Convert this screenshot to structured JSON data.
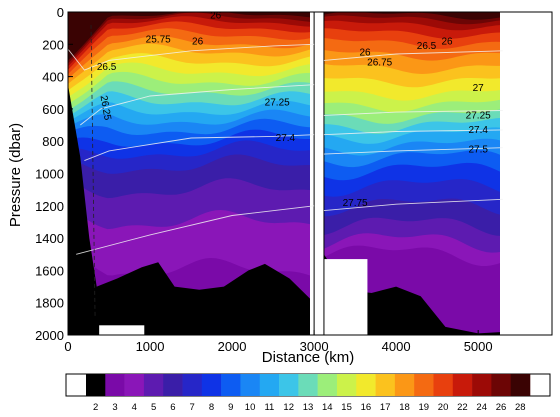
{
  "chart_data": {
    "type": "heatmap",
    "title": "",
    "xlabel": "Distance (km)",
    "ylabel": "Pressure (dbar)",
    "x_ticks": [
      0,
      1000,
      2000,
      3000,
      4000,
      5000
    ],
    "y_ticks": [
      0,
      200,
      400,
      600,
      800,
      1000,
      1200,
      1400,
      1600,
      1800,
      2000
    ],
    "xlim": [
      0,
      5900
    ],
    "ylim": [
      2000,
      0
    ],
    "y_reversed": true,
    "gap_between_sections_km": [
      3000,
      3120
    ],
    "colorbar": {
      "orientation": "horizontal",
      "position": "bottom",
      "tick_labels": [
        "2",
        "3",
        "4",
        "5",
        "6",
        "7",
        "8",
        "9",
        "10",
        "11",
        "12",
        "13",
        "14",
        "15",
        "16",
        "17",
        "18",
        "19",
        "20",
        "22",
        "24",
        "26",
        "28"
      ],
      "colors": [
        "#000000",
        "#7a0aa8",
        "#8a16b8",
        "#5d1bb0",
        "#3a1ea8",
        "#2626c8",
        "#0f33e6",
        "#0d5cf2",
        "#1a86f5",
        "#24a8f2",
        "#3cc5e8",
        "#6bdcb8",
        "#9cee7a",
        "#ccf24a",
        "#f2e92c",
        "#fbc21e",
        "#fb9716",
        "#f46a12",
        "#e8400e",
        "#c81a0a",
        "#9c0a06",
        "#6c0505",
        "#3a0303"
      ]
    },
    "isopycnal_labels": [
      "26",
      "25.75",
      "26",
      "26.5",
      "26.75",
      "27",
      "27.25",
      "27.4",
      "27.5",
      "27.75"
    ],
    "density_contours": [
      {
        "level": "26.5",
        "points": [
          [
            0,
            230
          ],
          [
            200,
            360
          ],
          [
            500,
            300
          ],
          [
            1500,
            240
          ],
          [
            2500,
            210
          ],
          [
            3000,
            200
          ]
        ]
      },
      {
        "level": "27",
        "points": [
          [
            150,
            700
          ],
          [
            400,
            600
          ],
          [
            1000,
            520
          ],
          [
            2000,
            480
          ],
          [
            3000,
            450
          ]
        ]
      },
      {
        "level": "27",
        "points": [
          [
            3120,
            300
          ],
          [
            4000,
            260
          ],
          [
            5300,
            240
          ]
        ]
      },
      {
        "level": "27.25",
        "points": [
          [
            200,
            920
          ],
          [
            500,
            860
          ],
          [
            1500,
            780
          ],
          [
            2500,
            770
          ],
          [
            3000,
            760
          ]
        ]
      },
      {
        "level": "27.25",
        "points": [
          [
            3120,
            640
          ],
          [
            4000,
            620
          ],
          [
            5300,
            610
          ]
        ]
      },
      {
        "level": "27.4",
        "points": [
          [
            3120,
            760
          ],
          [
            4000,
            740
          ],
          [
            5300,
            730
          ]
        ]
      },
      {
        "level": "27.5",
        "points": [
          [
            3120,
            880
          ],
          [
            4000,
            860
          ],
          [
            5300,
            840
          ]
        ]
      },
      {
        "level": "27.75",
        "points": [
          [
            100,
            1500
          ],
          [
            1000,
            1380
          ],
          [
            2000,
            1260
          ],
          [
            3000,
            1200
          ]
        ]
      },
      {
        "level": "27.75",
        "points": [
          [
            3120,
            1230
          ],
          [
            4000,
            1190
          ],
          [
            5300,
            1160
          ]
        ]
      }
    ]
  }
}
